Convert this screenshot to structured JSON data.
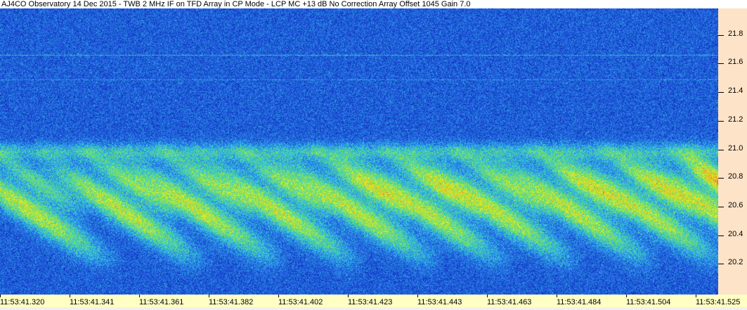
{
  "title": "AJ4CO Observatory 14 Dec 2015 - TWB 2 MHz IF on TFD Array in CP Mode - LCP  MC +13 dB  No Correction Array  Offset 1045  Gain 7.0",
  "chart_data": {
    "type": "heatmap",
    "title": "AJ4CO Observatory 14 Dec 2015 - TWB 2 MHz IF on TFD Array in CP Mode - LCP  MC +13 dB  No Correction Array  Offset 1045  Gain 7.0",
    "xlabel": "",
    "ylabel": "",
    "x_tick_labels": [
      "11:53:41.320",
      "11:53:41.341",
      "11:53:41.361",
      "11:53:41.382",
      "11:53:41.402",
      "11:53:41.423",
      "11:53:41.443",
      "11:53:41.463",
      "11:53:41.484",
      "11:53:41.504",
      "11:53:41.525"
    ],
    "y_ticks": [
      21.8,
      21.6,
      21.4,
      21.2,
      21.0,
      20.8,
      20.6,
      20.4,
      20.2
    ],
    "ylim": [
      20.0,
      22.0
    ],
    "y_axis_position": "right",
    "grid": false,
    "colormap": [
      "#0a1fa0",
      "#1747d0",
      "#2a7ae8",
      "#30c8e0",
      "#70e060",
      "#f0f020",
      "#f08020",
      "#e02020"
    ],
    "colors": {
      "y_axis_bg": "#fde3c8",
      "x_axis_bg": "#ffffc4"
    }
  }
}
